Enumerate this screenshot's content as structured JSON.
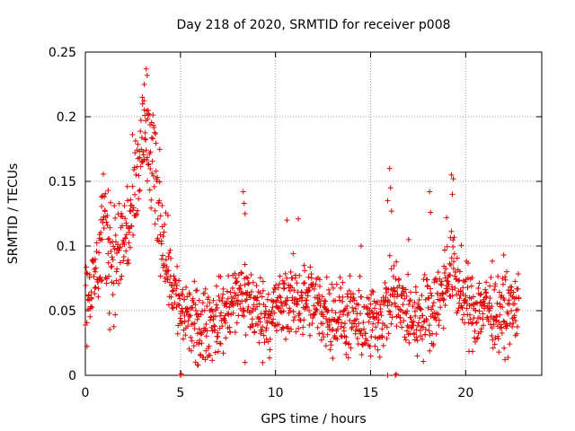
{
  "chart_data": {
    "type": "scatter",
    "title": "Day 218 of 2020, SRMTID for receiver p008",
    "xlabel": "GPS time / hours",
    "ylabel": "SRMTID / TECUs",
    "xlim": [
      0,
      24
    ],
    "ylim": [
      0,
      0.25
    ],
    "xticks": [
      0,
      5,
      10,
      15,
      20
    ],
    "xtick_labels": [
      "0",
      "5",
      "10",
      "15",
      "20"
    ],
    "yticks": [
      0,
      0.05,
      0.1,
      0.15,
      0.2,
      0.25
    ],
    "ytick_labels": [
      "0",
      "0.05",
      "0.1",
      "0.15",
      "0.2",
      "0.25"
    ],
    "grid": true,
    "marker": "+",
    "series": [
      {
        "name": "SRMTID",
        "color": "#e00000",
        "envelope": {
          "x": [
            0,
            0.2,
            0.5,
            0.8,
            1.0,
            1.3,
            1.6,
            2.0,
            2.3,
            2.6,
            2.9,
            3.1,
            3.3,
            3.6,
            3.9,
            4.2,
            4.5,
            4.8,
            5.0,
            5.3,
            5.7,
            6.0,
            6.5,
            7.0,
            7.5,
            8.0,
            8.3,
            8.7,
            9.0,
            9.5,
            10.0,
            10.5,
            11.0,
            11.5,
            12.0,
            12.5,
            13.0,
            13.5,
            14.0,
            14.5,
            15.0,
            15.5,
            16.0,
            16.3,
            16.6,
            17.0,
            17.5,
            18.0,
            18.5,
            19.0,
            19.3,
            19.6,
            20.0,
            20.5,
            21.0,
            21.5,
            22.0,
            22.5,
            22.8
          ],
          "y": [
            0.058,
            0.06,
            0.075,
            0.1,
            0.11,
            0.095,
            0.09,
            0.105,
            0.115,
            0.13,
            0.17,
            0.185,
            0.175,
            0.155,
            0.13,
            0.1,
            0.075,
            0.06,
            0.05,
            0.045,
            0.04,
            0.035,
            0.04,
            0.045,
            0.05,
            0.06,
            0.065,
            0.055,
            0.05,
            0.045,
            0.05,
            0.055,
            0.06,
            0.058,
            0.055,
            0.05,
            0.048,
            0.045,
            0.042,
            0.04,
            0.04,
            0.045,
            0.055,
            0.065,
            0.05,
            0.045,
            0.045,
            0.05,
            0.055,
            0.075,
            0.085,
            0.07,
            0.055,
            0.05,
            0.055,
            0.05,
            0.048,
            0.05,
            0.055
          ]
        },
        "spread": 0.022,
        "points_count": 1400,
        "x_range": [
          0,
          22.8
        ],
        "outliers": [
          {
            "x": 3.2,
            "y": 0.237
          },
          {
            "x": 3.25,
            "y": 0.232
          },
          {
            "x": 3.1,
            "y": 0.225
          },
          {
            "x": 3.0,
            "y": 0.215
          },
          {
            "x": 3.3,
            "y": 0.205
          },
          {
            "x": 1.2,
            "y": 0.143
          },
          {
            "x": 0.85,
            "y": 0.138
          },
          {
            "x": 8.3,
            "y": 0.142
          },
          {
            "x": 8.35,
            "y": 0.133
          },
          {
            "x": 8.4,
            "y": 0.125
          },
          {
            "x": 11.2,
            "y": 0.121
          },
          {
            "x": 10.6,
            "y": 0.12
          },
          {
            "x": 16.0,
            "y": 0.16
          },
          {
            "x": 16.05,
            "y": 0.145
          },
          {
            "x": 15.9,
            "y": 0.135
          },
          {
            "x": 16.1,
            "y": 0.127
          },
          {
            "x": 19.25,
            "y": 0.155
          },
          {
            "x": 19.35,
            "y": 0.152
          },
          {
            "x": 19.3,
            "y": 0.14
          },
          {
            "x": 18.1,
            "y": 0.142
          },
          {
            "x": 18.15,
            "y": 0.126
          },
          {
            "x": 19.0,
            "y": 0.122
          },
          {
            "x": 14.5,
            "y": 0.1
          },
          {
            "x": 17.0,
            "y": 0.105
          },
          {
            "x": 22.0,
            "y": 0.093
          },
          {
            "x": 5.0,
            "y": 0.0
          },
          {
            "x": 5.05,
            "y": 0.001
          },
          {
            "x": 15.9,
            "y": 0.0
          },
          {
            "x": 16.3,
            "y": 0.0
          },
          {
            "x": 16.35,
            "y": 0.001
          },
          {
            "x": 5.9,
            "y": 0.008
          },
          {
            "x": 8.4,
            "y": 0.01
          }
        ]
      }
    ]
  }
}
